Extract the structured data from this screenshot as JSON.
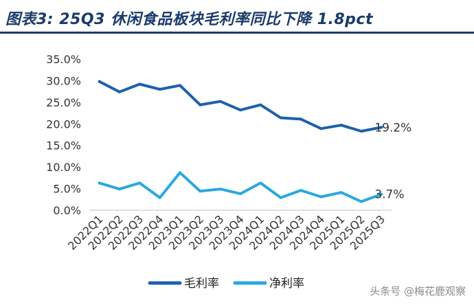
{
  "page": {
    "title": "图表3: 25Q3 休闲食品板块毛利率同比下降 1.8pct",
    "watermark": "头条号 @梅花鹿观察"
  },
  "chart_data": {
    "type": "line",
    "title": "图表3: 25Q3 休闲食品板块毛利率同比下降 1.8pct",
    "xlabel": "",
    "ylabel": "",
    "categories": [
      "2022Q1",
      "2022Q2",
      "2022Q3",
      "2022Q4",
      "2023Q1",
      "2023Q2",
      "2023Q3",
      "2023Q4",
      "2024Q1",
      "2024Q2",
      "2024Q3",
      "2024Q4",
      "2025Q1",
      "2025Q2",
      "2025Q3"
    ],
    "ylim": [
      0,
      35
    ],
    "yticks": [
      "0.0%",
      "5.0%",
      "10.0%",
      "15.0%",
      "20.0%",
      "25.0%",
      "30.0%",
      "35.0%"
    ],
    "ytick_values": [
      0,
      5,
      10,
      15,
      20,
      25,
      30,
      35
    ],
    "grid": false,
    "legend_position": "bottom",
    "series": [
      {
        "name": "毛利率",
        "color": "#1f5fad",
        "values": [
          29.8,
          27.4,
          29.2,
          28.0,
          28.9,
          24.4,
          25.2,
          23.2,
          24.4,
          21.4,
          21.1,
          18.9,
          19.7,
          18.3,
          19.2
        ],
        "end_label": "19.2%"
      },
      {
        "name": "净利率",
        "color": "#2aa8e0",
        "values": [
          6.3,
          4.9,
          6.3,
          2.9,
          8.7,
          4.4,
          4.9,
          3.8,
          6.3,
          2.9,
          4.6,
          3.1,
          4.1,
          2.0,
          3.7
        ],
        "end_label": "3.7%"
      }
    ]
  }
}
